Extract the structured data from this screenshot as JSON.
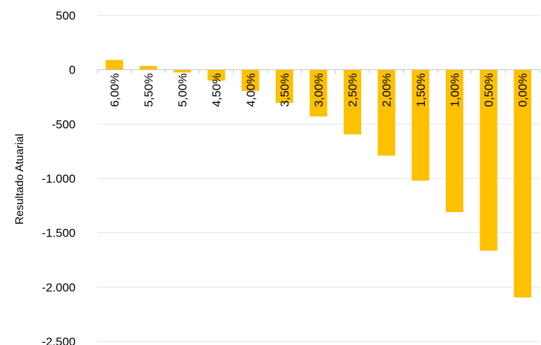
{
  "chart_data": {
    "type": "bar",
    "title": "",
    "xlabel": "",
    "ylabel": "Resultado Atuarial",
    "categories": [
      "6,00%",
      "5,50%",
      "5,00%",
      "4,50%",
      "4,00%",
      "3,50%",
      "3,00%",
      "2,50%",
      "2,00%",
      "1,50%",
      "1,00%",
      "0,50%",
      "0,00%"
    ],
    "values": [
      90,
      35,
      -25,
      -100,
      -195,
      -305,
      -430,
      -595,
      -790,
      -1020,
      -1310,
      -1665,
      -2095
    ],
    "ylim": [
      -2500,
      500
    ],
    "yticks": [
      500,
      0,
      -500,
      -1000,
      -1500,
      -2000,
      -2500
    ],
    "ytick_labels": [
      "500",
      "0",
      "-500",
      "-1.000",
      "-1.500",
      "-2.000",
      "-2.500"
    ],
    "grid": true,
    "legend": "none",
    "colors": {
      "bar": "#FFC000",
      "grid": "#D9E2F3",
      "axis": "#BFBFBF"
    }
  }
}
